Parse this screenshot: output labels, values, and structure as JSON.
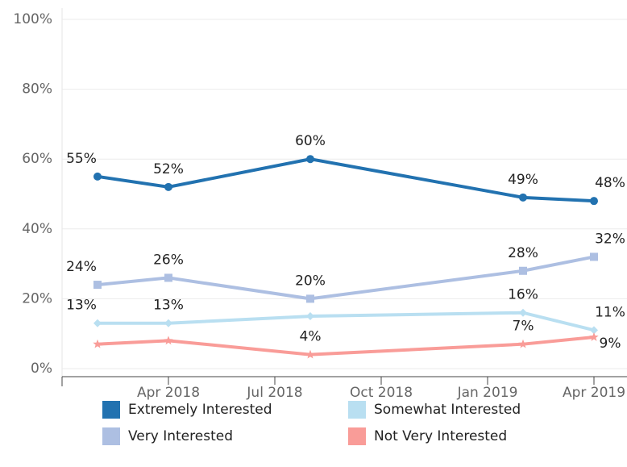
{
  "chart_data": {
    "type": "line",
    "x": [
      "2018-02",
      "2018-04",
      "2018-08",
      "2019-02",
      "2019-04"
    ],
    "xlim": [
      "2018-01",
      "2019-05"
    ],
    "xticks": [
      {
        "value": "2018-04",
        "label": "Apr 2018"
      },
      {
        "value": "2018-07",
        "label": "Jul 2018"
      },
      {
        "value": "2018-10",
        "label": "Oct 2018"
      },
      {
        "value": "2019-01",
        "label": "Jan 2019"
      },
      {
        "value": "2019-04",
        "label": "Apr 2019"
      }
    ],
    "ylim": [
      0,
      100
    ],
    "yticks": [
      {
        "value": 0,
        "label": "0%"
      },
      {
        "value": 20,
        "label": "20%"
      },
      {
        "value": 40,
        "label": "40%"
      },
      {
        "value": 60,
        "label": "60%"
      },
      {
        "value": 80,
        "label": "80%"
      },
      {
        "value": 100,
        "label": "100%"
      }
    ],
    "grid": true,
    "legend": "bottom",
    "series": [
      {
        "name": "Extremely Interested",
        "color": "#2272b0",
        "marker": "circle",
        "values": [
          55,
          52,
          60,
          49,
          48
        ],
        "value_labels": [
          "55%",
          "52%",
          "60%",
          "49%",
          "48%"
        ]
      },
      {
        "name": "Somewhat Interested",
        "color": "#b9dff1",
        "marker": "diamond",
        "values": [
          13,
          13,
          15,
          16,
          11
        ],
        "value_labels": [
          "13%",
          "13%",
          null,
          "16%",
          "11%"
        ]
      },
      {
        "name": "Very Interested",
        "color": "#adbfe2",
        "marker": "square",
        "values": [
          24,
          26,
          20,
          28,
          32
        ],
        "value_labels": [
          "24%",
          "26%",
          "20%",
          "28%",
          "32%"
        ]
      },
      {
        "name": "Not Very Interested",
        "color": "#f99c98",
        "marker": "star",
        "values": [
          7,
          8,
          4,
          7,
          9
        ],
        "value_labels": [
          null,
          null,
          "4%",
          "7%",
          "9%"
        ]
      }
    ]
  }
}
